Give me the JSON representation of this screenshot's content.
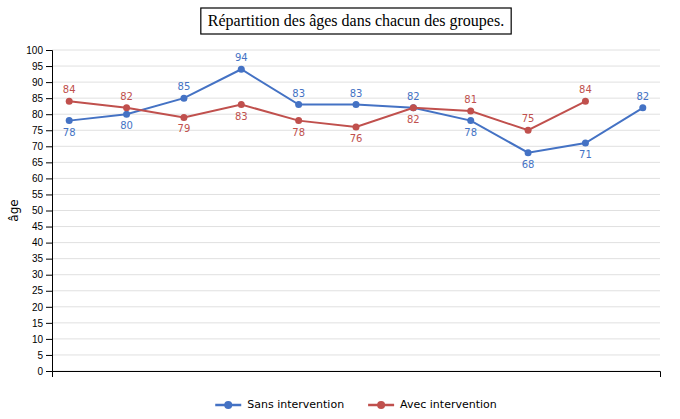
{
  "chart_data": {
    "type": "line",
    "title": "Répartition des âges dans chacun des groupes.",
    "ylabel": "âge",
    "categories": [
      null,
      null,
      null,
      null,
      null,
      null,
      null,
      null,
      null,
      null,
      null
    ],
    "series": [
      {
        "name": "Sans intervention",
        "color": "#4472C4",
        "marker": "circle",
        "values": [
          78,
          80,
          85,
          94,
          83,
          83,
          82,
          78,
          68,
          71,
          82
        ]
      },
      {
        "name": "Avec intervention",
        "color": "#C0504D",
        "marker": "circle",
        "values": [
          84,
          82,
          79,
          83,
          78,
          76,
          82,
          81,
          75,
          84,
          null
        ]
      }
    ],
    "ylim": [
      0,
      100
    ],
    "yticks": [
      0,
      5,
      10,
      15,
      20,
      25,
      30,
      35,
      40,
      45,
      50,
      55,
      60,
      65,
      70,
      75,
      80,
      85,
      90,
      95,
      100
    ],
    "grid": true,
    "legend": "bottom",
    "data_labels": true,
    "tick_labels": "y"
  }
}
